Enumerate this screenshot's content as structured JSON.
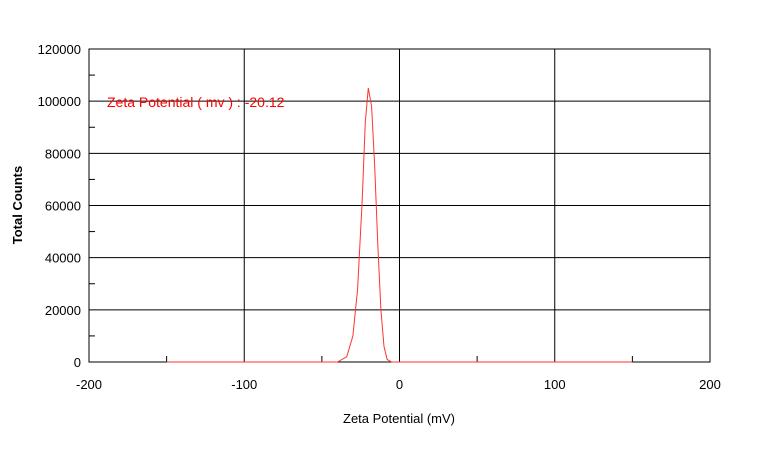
{
  "chart_data": {
    "type": "line",
    "title": "",
    "xlabel": "Zeta Potential (mV)",
    "ylabel": "Total Counts",
    "xlim": [
      -200,
      200
    ],
    "ylim": [
      0,
      120000
    ],
    "xticks": [
      -200,
      -100,
      0,
      100,
      200
    ],
    "yticks": [
      0,
      20000,
      40000,
      60000,
      80000,
      100000,
      120000
    ],
    "grid": true,
    "annotation": "Zeta Potential ( mv ) : -20.12",
    "colors": {
      "line": "#ff3333",
      "annotation": "#ff0000",
      "grid": "#000000"
    },
    "series": [
      {
        "x": [
          -150,
          -120,
          -90,
          -60,
          -40,
          -34,
          -30,
          -27,
          -24,
          -22,
          -20.12,
          -18,
          -16,
          -14,
          -12,
          -10,
          -8,
          -5,
          0,
          30,
          60,
          100,
          150
        ],
        "y": [
          0,
          0,
          0,
          0,
          0,
          2000,
          10000,
          28000,
          62000,
          92000,
          105000,
          98000,
          75000,
          45000,
          20000,
          6000,
          1000,
          0,
          0,
          0,
          0,
          0,
          0
        ]
      }
    ]
  }
}
